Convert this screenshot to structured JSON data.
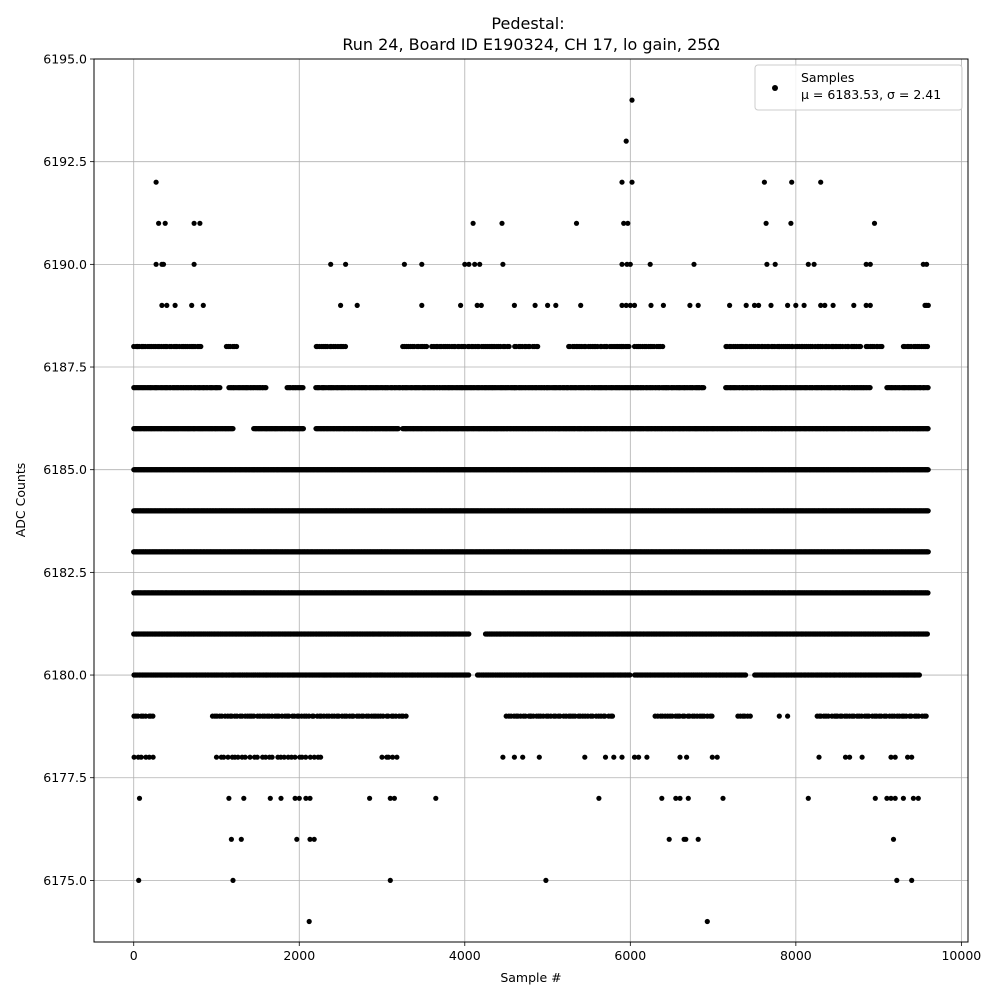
{
  "chart_data": {
    "type": "scatter",
    "title": "Pedestal:",
    "subtitle": "Run 24, Board ID E190324, CH 17, lo gain, 25Ω",
    "xlabel": "Sample #",
    "ylabel": "ADC Counts",
    "xlim": [
      -480,
      10080
    ],
    "ylim": [
      6173.5,
      6195.0
    ],
    "xticks": [
      0,
      2000,
      4000,
      6000,
      8000,
      10000
    ],
    "xtick_labels": [
      "0",
      "2000",
      "4000",
      "6000",
      "8000",
      "10000"
    ],
    "yticks": [
      6175.0,
      6177.5,
      6180.0,
      6182.5,
      6185.0,
      6187.5,
      6190.0,
      6192.5,
      6195.0
    ],
    "ytick_labels": [
      "6175.0",
      "6177.5",
      "6180.0",
      "6182.5",
      "6185.0",
      "6187.5",
      "6190.0",
      "6192.5",
      "6195.0"
    ],
    "grid": true,
    "marker_color": "#000000",
    "legend": {
      "placement": "upper right",
      "entries": [
        "Samples",
        "μ = 6183.53, σ = 2.41"
      ]
    },
    "series": [
      {
        "name": "Samples",
        "x_range": [
          0,
          9600
        ],
        "dense_levels": [
          {
            "y": 6188,
            "segments": [
              [
                0,
                820
              ],
              [
                1120,
                1250
              ],
              [
                2200,
                2560
              ],
              [
                3250,
                3560
              ],
              [
                3600,
                4550
              ],
              [
                4600,
                4900
              ],
              [
                5250,
                5700
              ],
              [
                5700,
                6000
              ],
              [
                6050,
                6400
              ],
              [
                7150,
                7800
              ],
              [
                7800,
                8450
              ],
              [
                8450,
                8800
              ],
              [
                8850,
                9050
              ],
              [
                9300,
                9600
              ]
            ],
            "step": 24
          },
          {
            "y": 6187,
            "segments": [
              [
                0,
                1050
              ],
              [
                1150,
                1600
              ],
              [
                1850,
                2050
              ],
              [
                2200,
                4600
              ],
              [
                4600,
                6900
              ],
              [
                7150,
                8900
              ],
              [
                9100,
                9600
              ]
            ],
            "step": 16
          },
          {
            "y": 6186,
            "segments": [
              [
                0,
                1200
              ],
              [
                1450,
                2050
              ],
              [
                2200,
                3200
              ],
              [
                3250,
                9600
              ]
            ],
            "step": 10
          },
          {
            "y": 6185,
            "segments": [
              [
                0,
                9600
              ]
            ],
            "step": 6
          },
          {
            "y": 6184,
            "segments": [
              [
                0,
                9600
              ]
            ],
            "step": 6
          },
          {
            "y": 6183,
            "segments": [
              [
                0,
                9600
              ]
            ],
            "step": 6
          },
          {
            "y": 6182,
            "segments": [
              [
                0,
                4200
              ],
              [
                4200,
                9600
              ]
            ],
            "step": 7
          },
          {
            "y": 6181,
            "segments": [
              [
                0,
                4050
              ],
              [
                4250,
                7450
              ],
              [
                7450,
                9600
              ]
            ],
            "step": 9
          },
          {
            "y": 6180,
            "segments": [
              [
                0,
                4050
              ],
              [
                4150,
                6000
              ],
              [
                6050,
                7400
              ],
              [
                7500,
                9500
              ]
            ],
            "step": 12
          },
          {
            "y": 6179,
            "segments": [
              [
                0,
                250
              ],
              [
                950,
                3300
              ],
              [
                4500,
                4800
              ],
              [
                4800,
                5800
              ],
              [
                6300,
                7000
              ],
              [
                7300,
                7450
              ],
              [
                8250,
                8500
              ],
              [
                8500,
                9600
              ]
            ],
            "step": 30
          },
          {
            "y": 6178,
            "segments": [
              [
                0,
                250
              ],
              [
                1000,
                1500
              ],
              [
                1550,
                2300
              ],
              [
                3000,
                3200
              ]
            ],
            "step": 45
          }
        ],
        "sparse_points": [
          [
            0,
            6183
          ],
          [
            60,
            6175
          ],
          [
            70,
            6177
          ],
          [
            50,
            6188
          ],
          [
            100,
            6188
          ],
          [
            270,
            6192
          ],
          [
            300,
            6191
          ],
          [
            380,
            6191
          ],
          [
            270,
            6190
          ],
          [
            340,
            6190
          ],
          [
            360,
            6190
          ],
          [
            340,
            6189
          ],
          [
            400,
            6189
          ],
          [
            500,
            6189
          ],
          [
            700,
            6189
          ],
          [
            730,
            6190
          ],
          [
            730,
            6191
          ],
          [
            800,
            6191
          ],
          [
            840,
            6189
          ],
          [
            1150,
            6177
          ],
          [
            1200,
            6175
          ],
          [
            1180,
            6176
          ],
          [
            1300,
            6176
          ],
          [
            1330,
            6177
          ],
          [
            1650,
            6177
          ],
          [
            1780,
            6177
          ],
          [
            1950,
            6177
          ],
          [
            2000,
            6177
          ],
          [
            2080,
            6177
          ],
          [
            2130,
            6177
          ],
          [
            1970,
            6176
          ],
          [
            2130,
            6176
          ],
          [
            2180,
            6176
          ],
          [
            2120,
            6174
          ],
          [
            2380,
            6190
          ],
          [
            2560,
            6190
          ],
          [
            2500,
            6189
          ],
          [
            2700,
            6189
          ],
          [
            2850,
            6177
          ],
          [
            3100,
            6177
          ],
          [
            3150,
            6177
          ],
          [
            3100,
            6175
          ],
          [
            3270,
            6190
          ],
          [
            3480,
            6190
          ],
          [
            3480,
            6189
          ],
          [
            3650,
            6177
          ],
          [
            3950,
            6189
          ],
          [
            4000,
            6190
          ],
          [
            4050,
            6190
          ],
          [
            4120,
            6190
          ],
          [
            4180,
            6190
          ],
          [
            4100,
            6191
          ],
          [
            4450,
            6191
          ],
          [
            4460,
            6190
          ],
          [
            4150,
            6189
          ],
          [
            4200,
            6189
          ],
          [
            4600,
            6189
          ],
          [
            4850,
            6189
          ],
          [
            5000,
            6189
          ],
          [
            5100,
            6189
          ],
          [
            5350,
            6191
          ],
          [
            5400,
            6189
          ],
          [
            4980,
            6175
          ],
          [
            4460,
            6178
          ],
          [
            4600,
            6178
          ],
          [
            4700,
            6178
          ],
          [
            4900,
            6178
          ],
          [
            5450,
            6178
          ],
          [
            5620,
            6177
          ],
          [
            5900,
            6192
          ],
          [
            5950,
            6193
          ],
          [
            6020,
            6194
          ],
          [
            6020,
            6192
          ],
          [
            5920,
            6191
          ],
          [
            5970,
            6191
          ],
          [
            5900,
            6190
          ],
          [
            5960,
            6190
          ],
          [
            6000,
            6190
          ],
          [
            5900,
            6189
          ],
          [
            5950,
            6189
          ],
          [
            6000,
            6189
          ],
          [
            6050,
            6189
          ],
          [
            5900,
            6188
          ],
          [
            6240,
            6190
          ],
          [
            6250,
            6189
          ],
          [
            6400,
            6189
          ],
          [
            6770,
            6190
          ],
          [
            6720,
            6189
          ],
          [
            6820,
            6189
          ],
          [
            6380,
            6177
          ],
          [
            6550,
            6177
          ],
          [
            6600,
            6177
          ],
          [
            6700,
            6177
          ],
          [
            6470,
            6176
          ],
          [
            6650,
            6176
          ],
          [
            6670,
            6176
          ],
          [
            6820,
            6176
          ],
          [
            6930,
            6174
          ],
          [
            7120,
            6177
          ],
          [
            6600,
            6178
          ],
          [
            6680,
            6178
          ],
          [
            6990,
            6178
          ],
          [
            7050,
            6178
          ],
          [
            5700,
            6178
          ],
          [
            5800,
            6178
          ],
          [
            5900,
            6178
          ],
          [
            6050,
            6178
          ],
          [
            6100,
            6178
          ],
          [
            6200,
            6178
          ],
          [
            7620,
            6192
          ],
          [
            7950,
            6192
          ],
          [
            8300,
            6192
          ],
          [
            7640,
            6191
          ],
          [
            7940,
            6191
          ],
          [
            7650,
            6190
          ],
          [
            7750,
            6190
          ],
          [
            8150,
            6190
          ],
          [
            8220,
            6190
          ],
          [
            7200,
            6189
          ],
          [
            7400,
            6189
          ],
          [
            7500,
            6189
          ],
          [
            7550,
            6189
          ],
          [
            7700,
            6189
          ],
          [
            7900,
            6189
          ],
          [
            8000,
            6189
          ],
          [
            8100,
            6189
          ],
          [
            8300,
            6189
          ],
          [
            8350,
            6189
          ],
          [
            8450,
            6189
          ],
          [
            8700,
            6189
          ],
          [
            8850,
            6189
          ],
          [
            8150,
            6177
          ],
          [
            7800,
            6179
          ],
          [
            7900,
            6179
          ],
          [
            8280,
            6178
          ],
          [
            8600,
            6178
          ],
          [
            8650,
            6178
          ],
          [
            8800,
            6178
          ],
          [
            8850,
            6190
          ],
          [
            8900,
            6190
          ],
          [
            8950,
            6191
          ],
          [
            8900,
            6189
          ],
          [
            8960,
            6177
          ],
          [
            9100,
            6177
          ],
          [
            9150,
            6177
          ],
          [
            9200,
            6177
          ],
          [
            9300,
            6177
          ],
          [
            9420,
            6177
          ],
          [
            9480,
            6177
          ],
          [
            9180,
            6176
          ],
          [
            9220,
            6175
          ],
          [
            9400,
            6175
          ],
          [
            9150,
            6178
          ],
          [
            9200,
            6178
          ],
          [
            9350,
            6178
          ],
          [
            9400,
            6178
          ],
          [
            9540,
            6190
          ],
          [
            9580,
            6190
          ],
          [
            9560,
            6189
          ],
          [
            9600,
            6189
          ],
          [
            9580,
            6189
          ]
        ]
      }
    ]
  }
}
